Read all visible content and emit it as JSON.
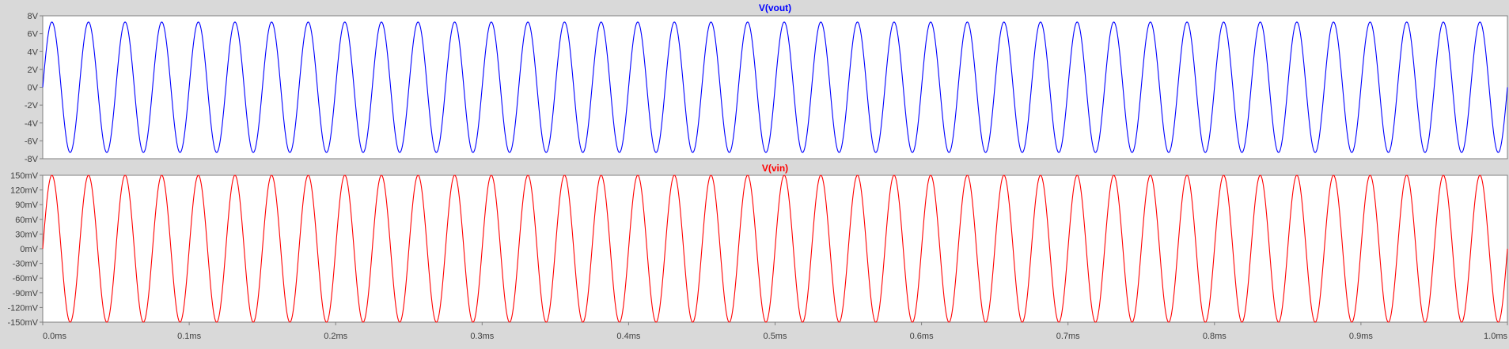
{
  "colors": {
    "background": "#d9d9d9",
    "panel_bg": "#ffffff",
    "frame": "#808080",
    "tick_label": "#404040",
    "vout": "#0000ff",
    "vin": "#ff0000"
  },
  "chart_data": [
    {
      "type": "line",
      "title": "V(vout)",
      "series": [
        {
          "name": "V(vout)",
          "amplitude_V": 7.3,
          "frequency_hz": 40000,
          "phase_deg": 0
        }
      ],
      "x_range_ms": [
        0,
        1.0
      ],
      "ylim": [
        -8,
        8
      ],
      "y_ticks": [
        8,
        6,
        4,
        2,
        0,
        -2,
        -4,
        -6,
        -8
      ],
      "y_tick_labels": [
        "8V",
        "6V",
        "4V",
        "2V",
        "0V",
        "-2V",
        "-4V",
        "-6V",
        "-8V"
      ],
      "grid": false
    },
    {
      "type": "line",
      "title": "V(vin)",
      "series": [
        {
          "name": "V(vin)",
          "amplitude_mV": 150,
          "frequency_hz": 40000,
          "phase_deg": 0
        }
      ],
      "x_range_ms": [
        0,
        1.0
      ],
      "ylim": [
        -150,
        150
      ],
      "y_ticks": [
        150,
        120,
        90,
        60,
        30,
        0,
        -30,
        -60,
        -90,
        -120,
        -150
      ],
      "y_tick_labels": [
        "150mV",
        "120mV",
        "90mV",
        "60mV",
        "30mV",
        "0mV",
        "-30mV",
        "-60mV",
        "-90mV",
        "-120mV",
        "-150mV"
      ],
      "x_ticks": [
        0,
        0.1,
        0.2,
        0.3,
        0.4,
        0.5,
        0.6,
        0.7,
        0.8,
        0.9,
        1.0
      ],
      "x_tick_labels": [
        "0.0ms",
        "0.1ms",
        "0.2ms",
        "0.3ms",
        "0.4ms",
        "0.5ms",
        "0.6ms",
        "0.7ms",
        "0.8ms",
        "0.9ms",
        "1.0ms"
      ],
      "grid": false
    }
  ]
}
